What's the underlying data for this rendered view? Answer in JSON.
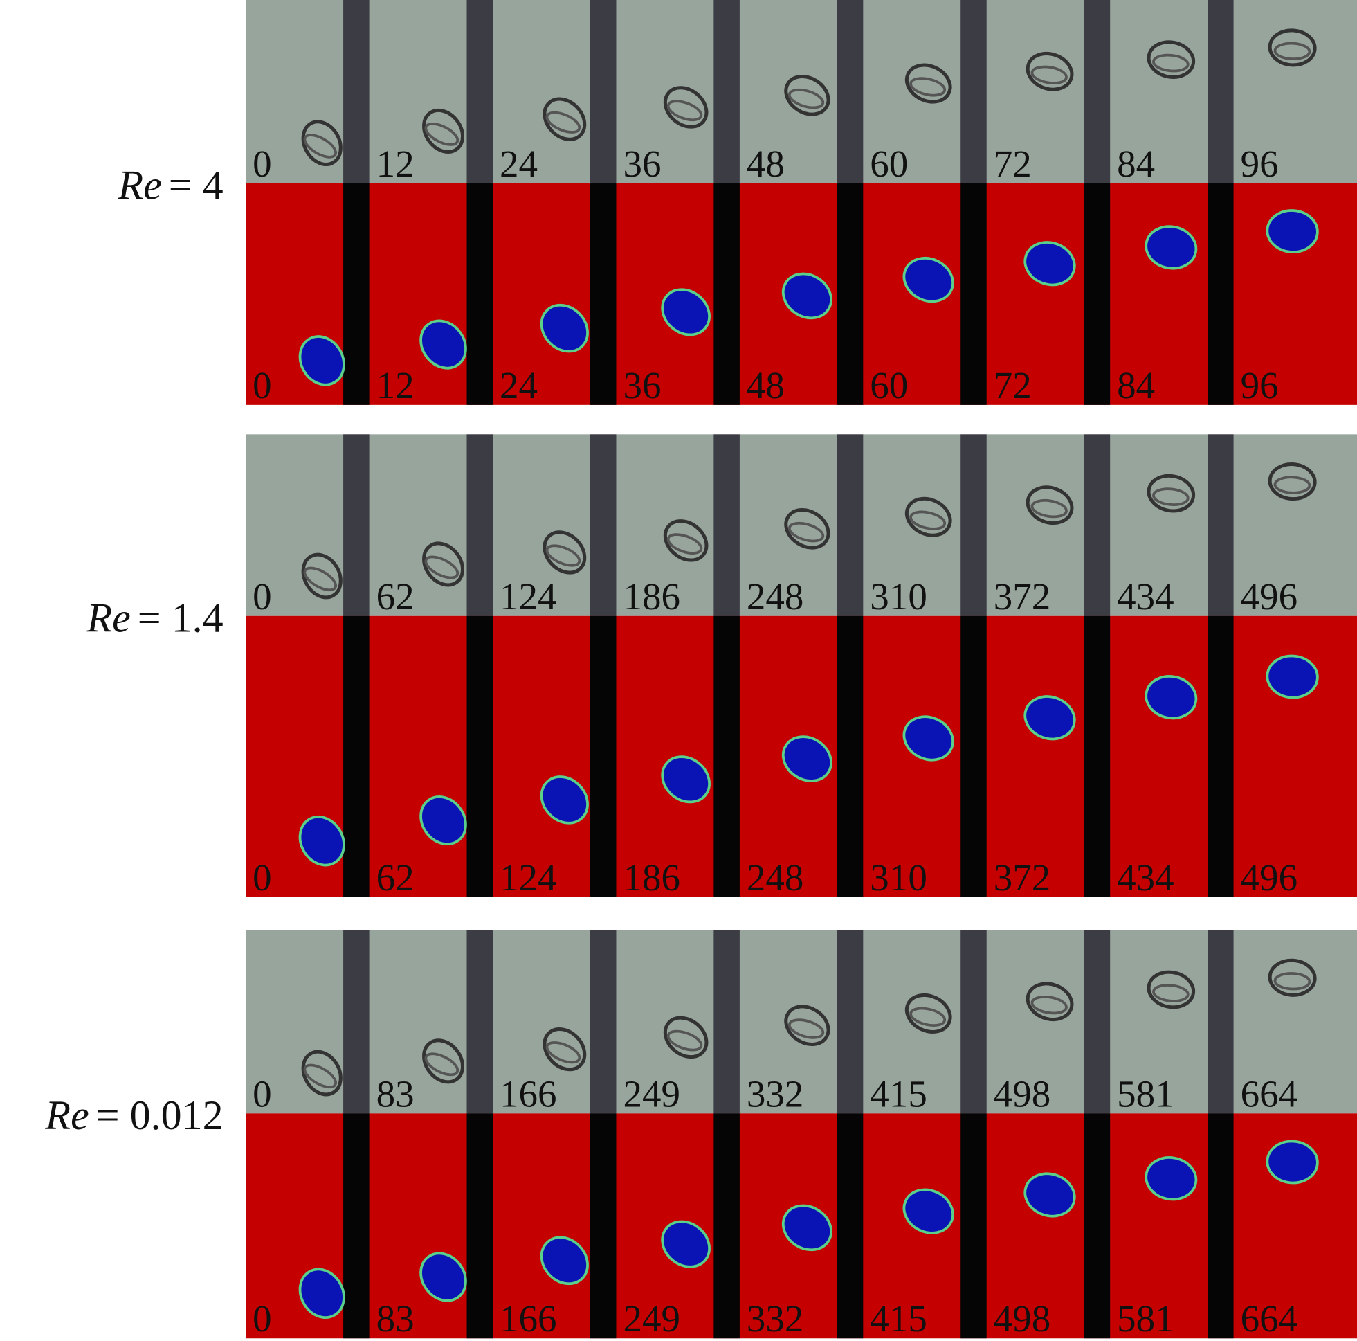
{
  "rows": [
    {
      "label": {
        "symbol": "Re",
        "value": "= 4"
      },
      "times": [
        0,
        12,
        24,
        36,
        48,
        60,
        72,
        84,
        96
      ]
    },
    {
      "label": {
        "symbol": "Re",
        "value": "= 1.4"
      },
      "times": [
        0,
        62,
        124,
        186,
        248,
        310,
        372,
        434,
        496
      ]
    },
    {
      "label": {
        "symbol": "Re",
        "value": "= 0.012"
      },
      "times": [
        0,
        83,
        166,
        249,
        332,
        415,
        498,
        581,
        664
      ]
    }
  ]
}
